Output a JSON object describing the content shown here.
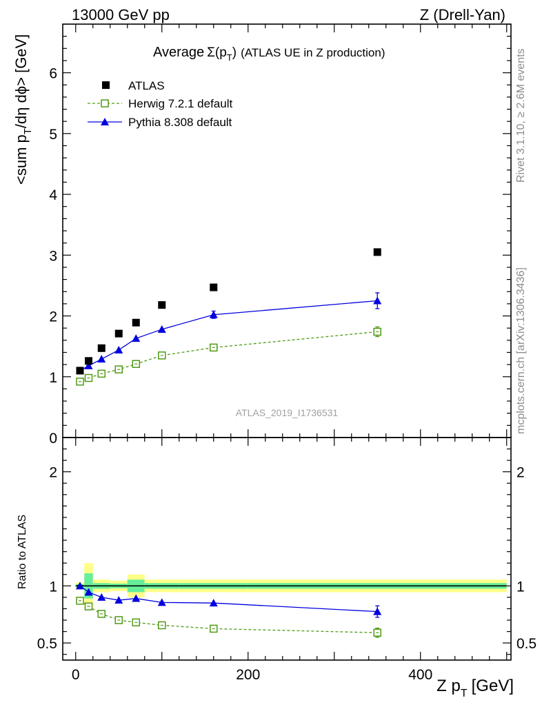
{
  "header": {
    "left": "13000 GeV pp",
    "right": "Z (Drell-Yan)"
  },
  "plot_title": {
    "prefix": "Average",
    "sigma": "Σ(p",
    "sub": "T",
    "close": ")",
    "rest": "(ATLAS UE in Z production)"
  },
  "side_labels": {
    "rivet": "Rivet 3.1.10, ≥ 2.6M events",
    "mcplots": "mcplots.cern.ch [arXiv:1306.3436]"
  },
  "analysis_label": "ATLAS_2019_I1736531",
  "axes": {
    "ylabel_main_a": "<sum p",
    "ylabel_main_sub": "T",
    "ylabel_main_b": "/dη dϕ> [GeV]",
    "ylabel_ratio": "Ratio to ATLAS",
    "xlabel_a": "Z p",
    "xlabel_sub": "T",
    "xlabel_b": "[GeV]"
  },
  "legend": {
    "atlas": "ATLAS",
    "herwig": "Herwig 7.2.1 default",
    "pythia": "Pythia 8.308 default"
  },
  "colors": {
    "atlas": "#000000",
    "herwig": "#4f9a14",
    "pythia": "#0000dd",
    "band_inner": "#66ee99",
    "band_outer": "#ffff88"
  },
  "chart_data": [
    {
      "type": "line",
      "title": "Average Σ(pT) (ATLAS UE in Z production)",
      "xlabel": "Z pT [GeV]",
      "ylabel": "<sum pT/dη dϕ> [GeV]",
      "xlim": [
        -15,
        505
      ],
      "ylim": [
        0,
        6.8
      ],
      "yticks": [
        0,
        1,
        2,
        3,
        4,
        5,
        6
      ],
      "x": [
        5,
        15,
        30,
        50,
        70,
        100,
        160,
        350
      ],
      "series": [
        {
          "name": "ATLAS",
          "marker": "filled-square",
          "values": [
            1.1,
            1.26,
            1.47,
            1.71,
            1.89,
            2.18,
            2.47,
            3.05
          ],
          "errors": [
            0.01,
            0.01,
            0.01,
            0.01,
            0.01,
            0.01,
            0.01,
            0.02
          ]
        },
        {
          "name": "Herwig 7.2.1 default",
          "marker": "open-square",
          "line": "dashed",
          "values": [
            0.92,
            0.98,
            1.05,
            1.12,
            1.21,
            1.35,
            1.48,
            1.74
          ],
          "errors": [
            0.01,
            0.01,
            0.01,
            0.02,
            0.02,
            0.02,
            0.03,
            0.08
          ]
        },
        {
          "name": "Pythia 8.308 default",
          "marker": "filled-triangle",
          "line": "solid",
          "values": [
            1.1,
            1.18,
            1.29,
            1.44,
            1.63,
            1.78,
            2.02,
            2.25
          ],
          "errors": [
            0.01,
            0.01,
            0.01,
            0.02,
            0.02,
            0.02,
            0.06,
            0.13
          ]
        }
      ]
    },
    {
      "type": "line",
      "ylabel": "Ratio to ATLAS",
      "xlim": [
        -15,
        505
      ],
      "ylim": [
        0.35,
        2.3
      ],
      "yticks": [
        0.5,
        1,
        2
      ],
      "xticks": [
        0,
        200,
        400
      ],
      "reference": 1,
      "bands": [
        {
          "x0": 0,
          "x1": 10,
          "inner": 0.015,
          "outer": 0.03
        },
        {
          "x0": 10,
          "x1": 20,
          "inner": 0.11,
          "outer": 0.2
        },
        {
          "x0": 20,
          "x1": 40,
          "inner": 0.025,
          "outer": 0.055
        },
        {
          "x0": 40,
          "x1": 60,
          "inner": 0.02,
          "outer": 0.045
        },
        {
          "x0": 60,
          "x1": 80,
          "inner": 0.055,
          "outer": 0.1
        },
        {
          "x0": 80,
          "x1": 120,
          "inner": 0.025,
          "outer": 0.055
        },
        {
          "x0": 120,
          "x1": 200,
          "inner": 0.025,
          "outer": 0.055
        },
        {
          "x0": 200,
          "x1": 500,
          "inner": 0.025,
          "outer": 0.055
        }
      ],
      "x": [
        5,
        15,
        30,
        50,
        70,
        100,
        160,
        350
      ],
      "series": [
        {
          "name": "Herwig 7.2.1 default",
          "marker": "open-square",
          "line": "dashed",
          "values": [
            0.87,
            0.82,
            0.755,
            0.7,
            0.68,
            0.655,
            0.625,
            0.59
          ],
          "errors": [
            0.01,
            0.01,
            0.01,
            0.01,
            0.01,
            0.01,
            0.01,
            0.04
          ]
        },
        {
          "name": "Pythia 8.308 default",
          "marker": "filled-triangle",
          "line": "solid",
          "values": [
            1.0,
            0.945,
            0.9,
            0.875,
            0.89,
            0.855,
            0.85,
            0.775
          ],
          "errors": [
            0.01,
            0.01,
            0.01,
            0.01,
            0.01,
            0.01,
            0.02,
            0.05
          ]
        }
      ]
    }
  ]
}
